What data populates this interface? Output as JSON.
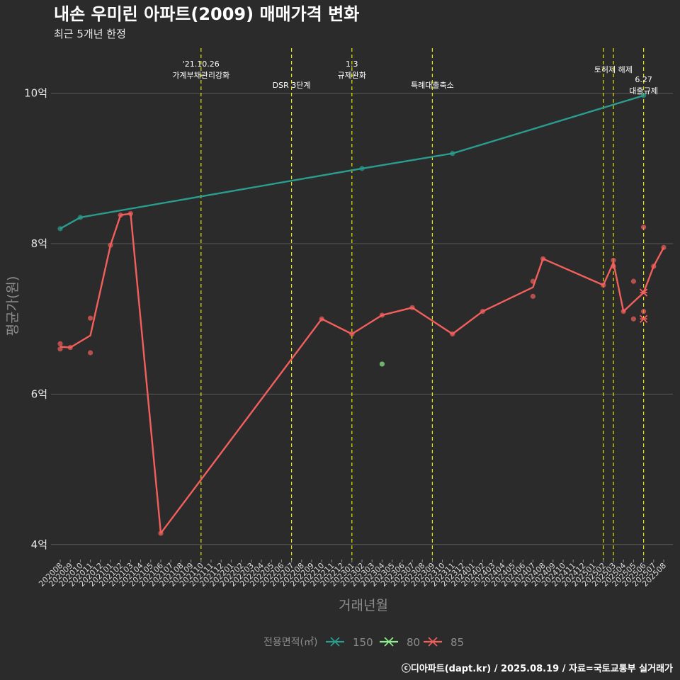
{
  "chart_data": {
    "type": "line",
    "title": "내손 우미린 아파트(2009) 매매가격 변화",
    "subtitle": "최근 5개년 한정",
    "xlabel": "거래년월",
    "ylabel": "평균가(원)",
    "caption": "ⓒ디아파트(dapt.kr) / 2025.08.19 / 자료=국토교통부 실거래가",
    "y_unit": "억",
    "ylim": [
      3.8,
      10.6
    ],
    "yticks": [
      {
        "value": 4,
        "label": "4억"
      },
      {
        "value": 6,
        "label": "6억"
      },
      {
        "value": 8,
        "label": "8억"
      },
      {
        "value": 10,
        "label": "10억"
      }
    ],
    "grid": true,
    "legend_position": "bottom",
    "legend_title": "전용면적(㎡)",
    "x_categories": [
      "202008",
      "202009",
      "202010",
      "202011",
      "202012",
      "202101",
      "202102",
      "202103",
      "202104",
      "202105",
      "202106",
      "202107",
      "202108",
      "202109",
      "202110",
      "202111",
      "202112",
      "202201",
      "202202",
      "202203",
      "202204",
      "202205",
      "202206",
      "202207",
      "202208",
      "202209",
      "202210",
      "202211",
      "202212",
      "202301",
      "202302",
      "202303",
      "202304",
      "202305",
      "202306",
      "202307",
      "202308",
      "202309",
      "202310",
      "202311",
      "202312",
      "202401",
      "202402",
      "202403",
      "202404",
      "202405",
      "202406",
      "202407",
      "202408",
      "202409",
      "202410",
      "202411",
      "202412",
      "202501",
      "202502",
      "202503",
      "202504",
      "202505",
      "202506",
      "202507",
      "202508"
    ],
    "series": [
      {
        "name": "150",
        "color": "#2a9d8f",
        "line": [
          [
            "202008",
            8.2
          ],
          [
            "202010",
            8.35
          ],
          [
            "202302",
            9.0
          ],
          [
            "202311",
            9.2
          ],
          [
            "202506",
            9.97
          ]
        ],
        "points": [
          [
            "202008",
            8.2
          ],
          [
            "202010",
            8.35
          ],
          [
            "202302",
            9.0
          ],
          [
            "202311",
            9.2
          ],
          [
            "202506",
            9.97
          ]
        ],
        "cross_points": []
      },
      {
        "name": "80",
        "color": "#90ee90",
        "line": [],
        "points": [
          [
            "202304",
            6.4
          ]
        ],
        "cross_points": []
      },
      {
        "name": "85",
        "color": "#f25f5c",
        "line": [
          [
            "202008",
            6.63
          ],
          [
            "202009",
            6.62
          ],
          [
            "202011",
            6.78
          ],
          [
            "202101",
            7.98
          ],
          [
            "202102",
            8.38
          ],
          [
            "202103",
            8.4
          ],
          [
            "202106",
            4.15
          ],
          [
            "202210",
            7.0
          ],
          [
            "202301",
            6.8
          ],
          [
            "202304",
            7.05
          ],
          [
            "202307",
            7.15
          ],
          [
            "202311",
            6.8
          ],
          [
            "202402",
            7.1
          ],
          [
            "202407",
            7.42
          ],
          [
            "202408",
            7.8
          ],
          [
            "202502",
            7.45
          ],
          [
            "202503",
            7.75
          ],
          [
            "202504",
            7.1
          ],
          [
            "202506",
            7.35
          ],
          [
            "202507",
            7.7
          ],
          [
            "202508",
            7.95
          ]
        ],
        "points": [
          [
            "202008",
            6.67
          ],
          [
            "202008",
            6.6
          ],
          [
            "202009",
            6.62
          ],
          [
            "202011",
            7.01
          ],
          [
            "202011",
            6.55
          ],
          [
            "202101",
            7.98
          ],
          [
            "202102",
            8.38
          ],
          [
            "202103",
            8.4
          ],
          [
            "202106",
            4.15
          ],
          [
            "202210",
            7.0
          ],
          [
            "202301",
            6.8
          ],
          [
            "202304",
            7.05
          ],
          [
            "202307",
            7.15
          ],
          [
            "202311",
            6.8
          ],
          [
            "202402",
            7.1
          ],
          [
            "202407",
            7.5
          ],
          [
            "202407",
            7.3
          ],
          [
            "202408",
            7.8
          ],
          [
            "202502",
            7.45
          ],
          [
            "202503",
            7.7
          ],
          [
            "202503",
            7.78
          ],
          [
            "202504",
            7.1
          ],
          [
            "202505",
            7.5
          ],
          [
            "202505",
            7.0
          ],
          [
            "202506",
            8.22
          ],
          [
            "202506",
            7.1
          ],
          [
            "202507",
            7.7
          ],
          [
            "202508",
            7.95
          ]
        ],
        "cross_points": [
          [
            "202506",
            7.35
          ],
          [
            "202506",
            7.0
          ]
        ]
      }
    ],
    "events": [
      {
        "x": "202110",
        "lines": [
          "'21.10.26",
          "가계부채관리강화"
        ]
      },
      {
        "x": "202207",
        "lines": [
          "DSR 3단계"
        ]
      },
      {
        "x": "202301",
        "lines": [
          "1.3",
          "규제완화"
        ]
      },
      {
        "x": "202309",
        "lines": [
          "특례대출축소"
        ]
      },
      {
        "x": "202502",
        "lines": [
          "토허제 해제"
        ]
      },
      {
        "x": "202503",
        "lines": []
      },
      {
        "x": "202506",
        "lines": [
          "6.27",
          "대출규제"
        ]
      }
    ],
    "colors": {
      "background": "#2b2b2b",
      "grid": "#5a5a5a",
      "event_line": "#e6e600"
    }
  }
}
